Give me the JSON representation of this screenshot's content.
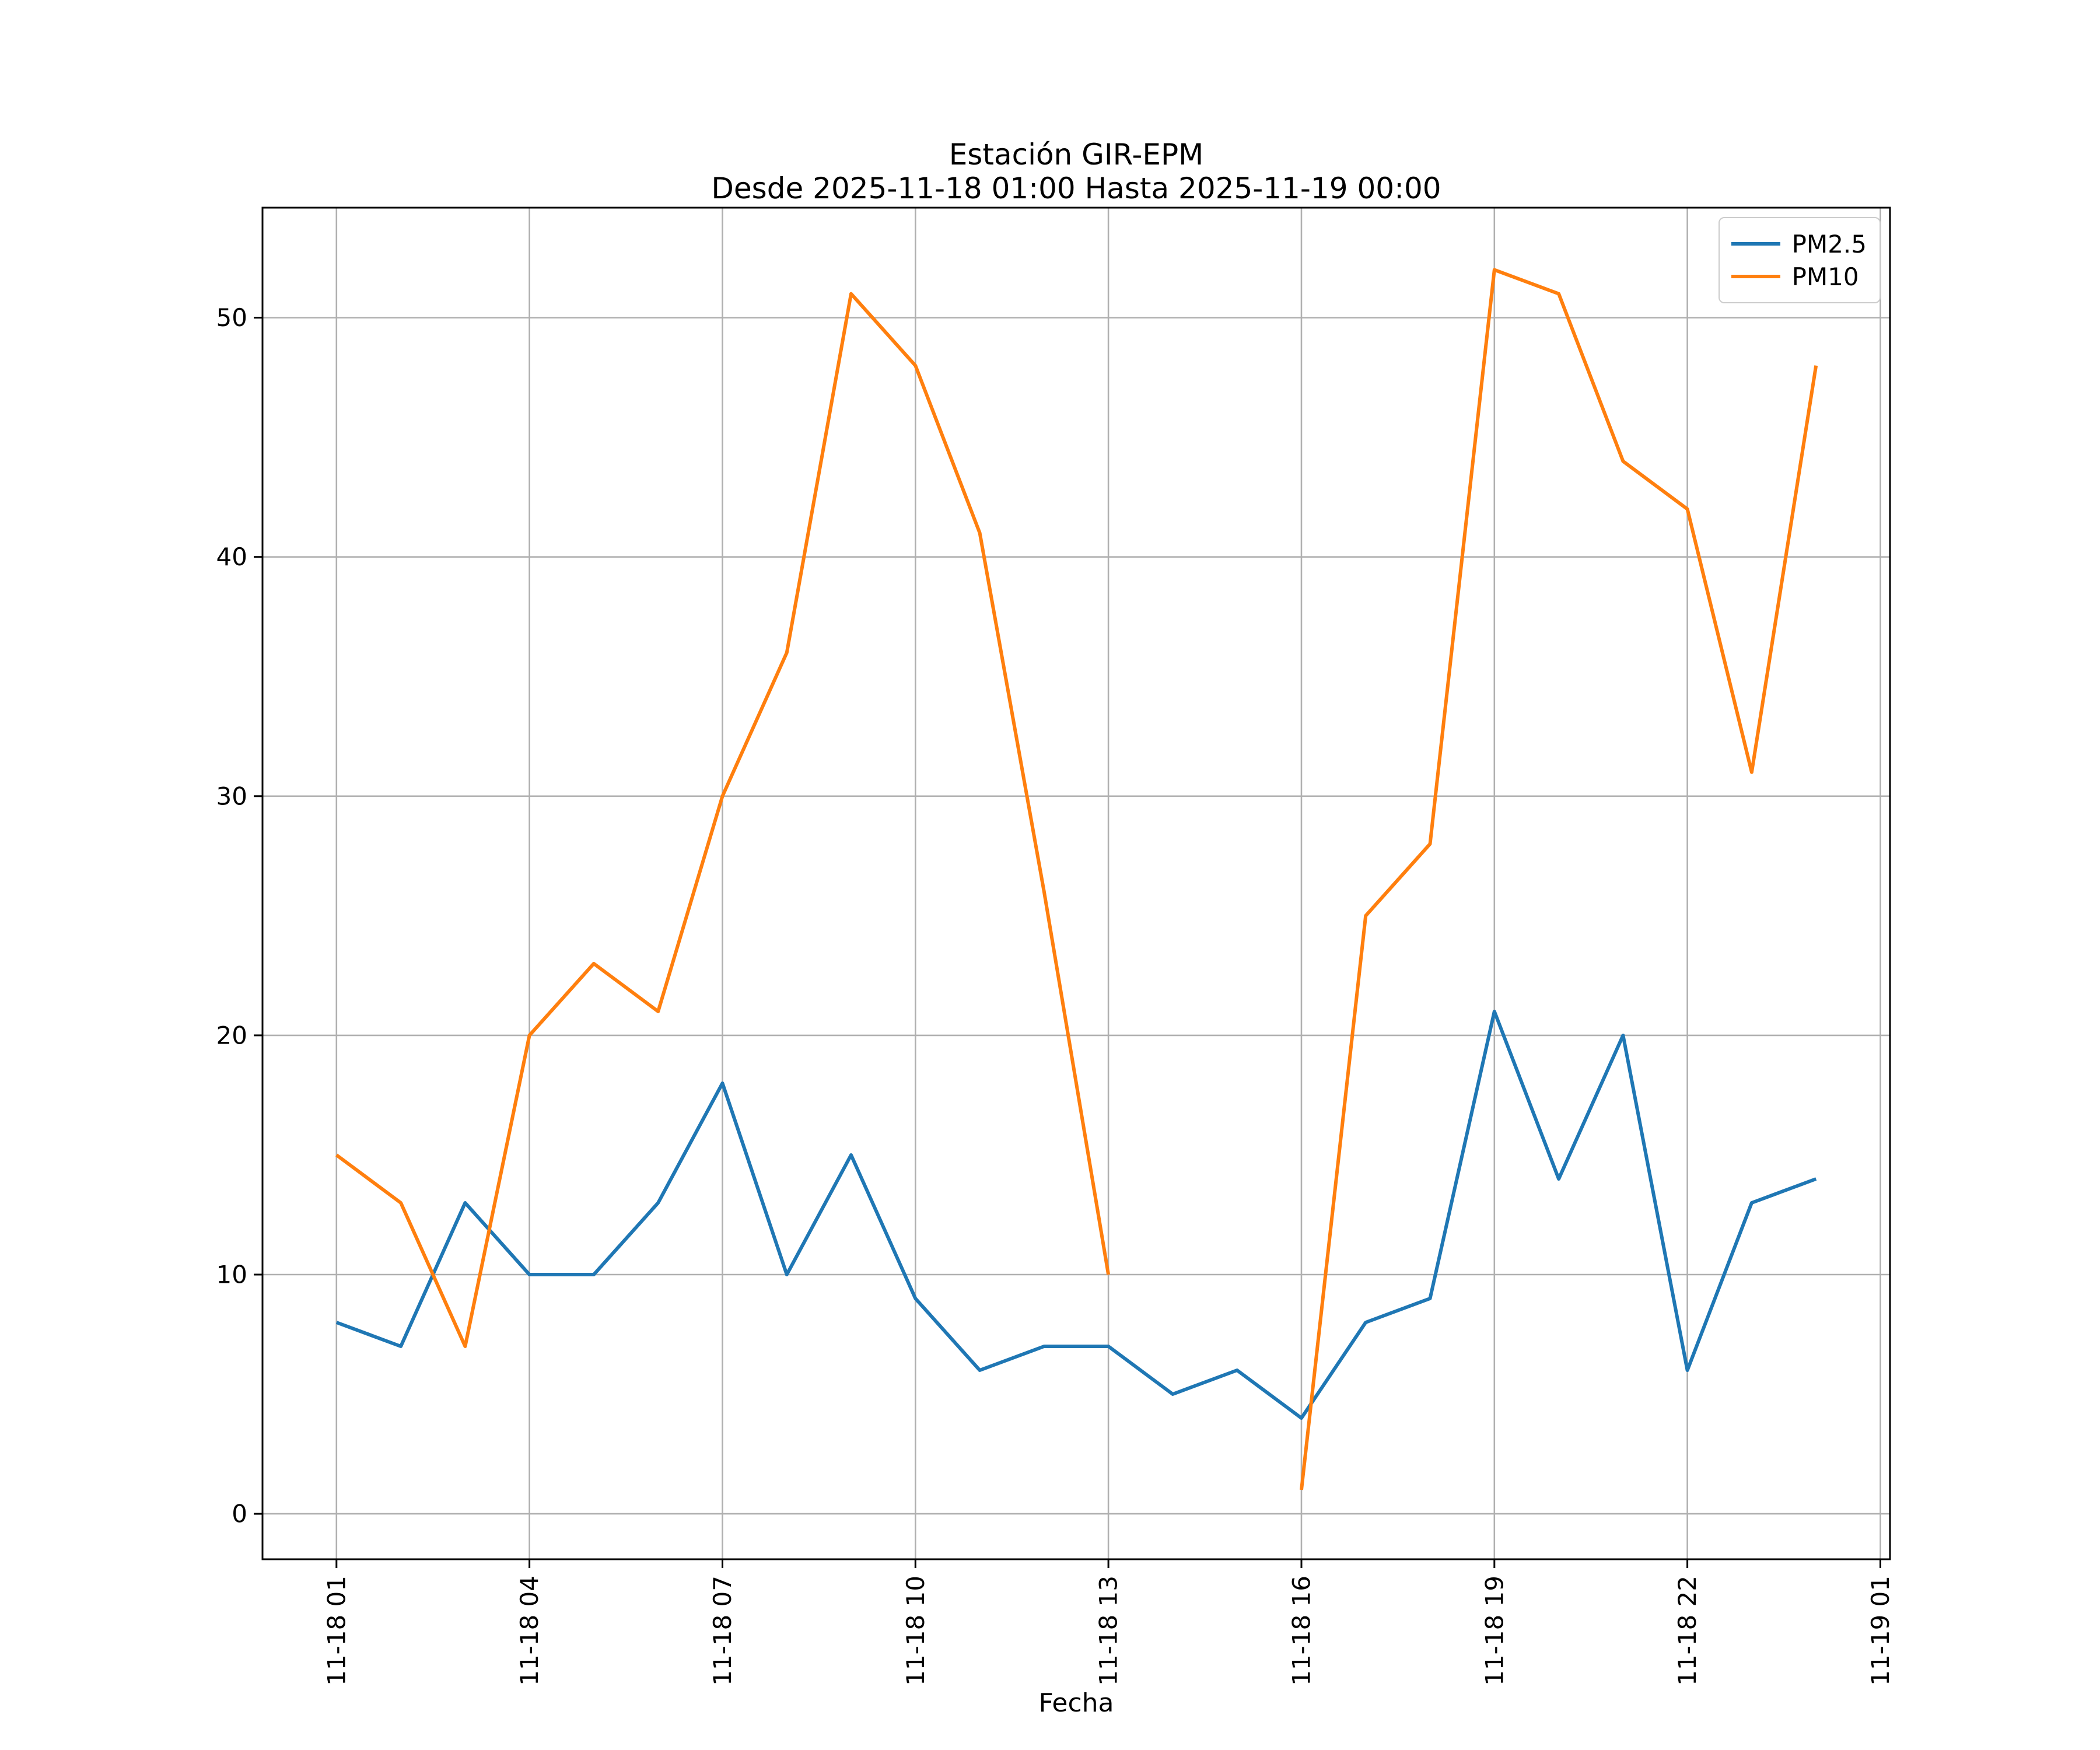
{
  "figure": {
    "background": "#ffffff"
  },
  "chart_data": {
    "type": "line",
    "title": "Estación GIR-EPM",
    "subtitle": "Desde 2025-11-18 01:00 Hasta 2025-11-19 00:00",
    "xlabel": "Fecha",
    "ylabel": "",
    "x_hours": [
      1,
      2,
      3,
      4,
      5,
      6,
      7,
      8,
      9,
      10,
      11,
      12,
      13,
      14,
      15,
      16,
      17,
      18,
      19,
      20,
      21,
      22,
      23,
      24
    ],
    "series": [
      {
        "name": "PM2.5",
        "color": "#1f77b4",
        "values": [
          8,
          7,
          13,
          10,
          10,
          13,
          18,
          10,
          15,
          9,
          6,
          7,
          7,
          5,
          6,
          4,
          8,
          9,
          21,
          14,
          20,
          6,
          13,
          14
        ]
      },
      {
        "name": "PM10",
        "color": "#ff7f0e",
        "values": [
          15,
          13,
          7,
          20,
          23,
          21,
          30,
          36,
          51,
          48,
          41,
          26,
          10,
          null,
          null,
          1,
          25,
          28,
          52,
          51,
          44,
          42,
          31,
          48
        ]
      }
    ],
    "x_tick_hours": [
      1,
      4,
      7,
      10,
      13,
      16,
      19,
      22,
      25
    ],
    "x_tick_labels": [
      "11-18 01",
      "11-18 04",
      "11-18 07",
      "11-18 10",
      "11-18 13",
      "11-18 16",
      "11-18 19",
      "11-18 22",
      "11-19 01"
    ],
    "y_ticks": [
      0,
      10,
      20,
      30,
      40,
      50
    ],
    "xlim": [
      -0.15,
      25.15
    ],
    "ylim": [
      -1.9,
      54.6
    ],
    "grid": true,
    "grid_color": "#b0b0b0",
    "legend_position": "upper right"
  }
}
